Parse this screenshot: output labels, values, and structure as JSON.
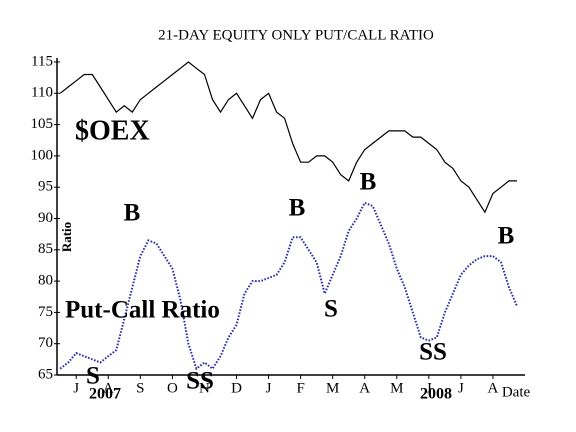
{
  "chart_data": {
    "type": "line",
    "title": "21-DAY EQUITY ONLY PUT/CALL RATIO",
    "ylabel": "Ratio",
    "xlabel": "Date",
    "x": [
      -0.5,
      -0.25,
      0,
      0.25,
      0.5,
      0.75,
      1,
      1.25,
      1.5,
      1.75,
      2,
      2.25,
      2.5,
      2.75,
      3,
      3.25,
      3.5,
      3.75,
      4,
      4.25,
      4.5,
      4.75,
      5,
      5.25,
      5.5,
      5.75,
      6,
      6.25,
      6.5,
      6.75,
      7,
      7.25,
      7.5,
      7.75,
      8,
      8.25,
      8.5,
      8.75,
      9,
      9.25,
      9.5,
      9.75,
      10,
      10.25,
      10.5,
      10.75,
      11,
      11.25,
      11.5,
      11.75,
      12,
      12.25,
      12.5,
      12.75,
      13,
      13.25,
      13.5,
      13.75
    ],
    "series": [
      {
        "name": "$OEX",
        "color": "#000000",
        "dotted": false,
        "values": [
          110,
          111,
          112,
          113,
          113,
          111,
          109,
          107,
          108,
          107,
          109,
          110,
          111,
          112,
          113,
          114,
          115,
          114,
          113,
          109,
          107,
          109,
          110,
          108,
          106,
          109,
          110,
          107,
          106,
          102,
          99,
          99,
          100,
          100,
          99,
          97,
          96,
          99,
          101,
          102,
          103,
          104,
          104,
          104,
          103,
          103,
          102,
          101,
          99,
          98,
          96,
          95,
          93,
          91,
          94,
          95,
          96,
          96
        ]
      },
      {
        "name": "Put-Call Ratio",
        "color": "#2b2ba8",
        "dotted": true,
        "values": [
          66,
          67,
          68.5,
          68,
          67.5,
          67,
          68,
          69,
          74,
          79,
          84,
          86.5,
          86,
          84,
          82,
          77,
          70,
          66,
          67,
          66,
          68,
          71,
          73,
          78,
          80,
          80,
          80.5,
          81,
          83,
          87,
          87,
          85,
          83,
          78,
          81,
          84,
          88,
          90,
          92.5,
          92,
          89,
          86,
          82,
          79,
          75,
          71,
          70.5,
          71,
          75,
          78,
          81,
          82.5,
          83.5,
          84,
          84,
          83,
          79,
          76
        ]
      }
    ],
    "xlim": [
      -0.6,
      14.0
    ],
    "ylim": [
      65,
      115
    ],
    "yticks": [
      65,
      70,
      75,
      80,
      85,
      90,
      95,
      100,
      105,
      110,
      115
    ],
    "xticks": [
      {
        "value": 0,
        "label": "J"
      },
      {
        "value": 1,
        "label": "A"
      },
      {
        "value": 2,
        "label": "S"
      },
      {
        "value": 3,
        "label": "O"
      },
      {
        "value": 4,
        "label": "N"
      },
      {
        "value": 5,
        "label": "D"
      },
      {
        "value": 6,
        "label": "J"
      },
      {
        "value": 7,
        "label": "F"
      },
      {
        "value": 8,
        "label": "M"
      },
      {
        "value": 9,
        "label": "A"
      },
      {
        "value": 10,
        "label": "M"
      },
      {
        "value": 11,
        "label": "J"
      },
      {
        "value": 12,
        "label": "J"
      },
      {
        "value": 13,
        "label": "A"
      }
    ],
    "year_labels": [
      "2007",
      "2008"
    ],
    "signals": [
      "B",
      "B",
      "B",
      "B",
      "S",
      "SS",
      "S",
      "SS"
    ],
    "signal_color": "#e00000",
    "grid": false
  }
}
